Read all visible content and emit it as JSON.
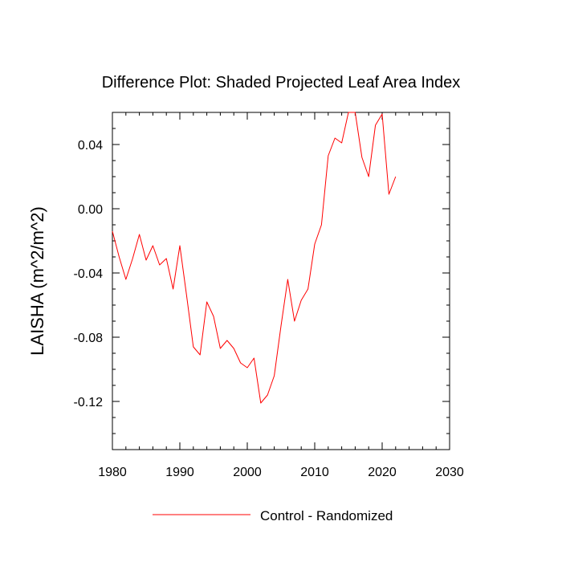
{
  "chart_data": {
    "type": "line",
    "title": "Difference Plot: Shaded Projected Leaf Area Index",
    "xlabel": "",
    "ylabel": "LAISHA  (m^2/m^2)",
    "xlim": [
      1980,
      2030
    ],
    "ylim": [
      -0.15,
      0.06
    ],
    "x_ticks": [
      1980,
      1990,
      2000,
      2010,
      2020,
      2030
    ],
    "x_tick_labels": [
      "1980",
      "1990",
      "2000",
      "2010",
      "2020",
      "2030"
    ],
    "y_ticks": [
      -0.12,
      -0.08,
      -0.04,
      0.0,
      0.04
    ],
    "y_tick_labels": [
      "-0.12",
      "-0.08",
      "-0.04",
      "0.00",
      "0.04"
    ],
    "grid": false,
    "legend_position": "bottom-center",
    "series": [
      {
        "name": "Control - Randomized",
        "color": "#ff0000",
        "x": [
          1980,
          1981,
          1982,
          1983,
          1984,
          1985,
          1986,
          1987,
          1988,
          1989,
          1990,
          1991,
          1992,
          1993,
          1994,
          1995,
          1996,
          1997,
          1998,
          1999,
          2000,
          2001,
          2002,
          2003,
          2004,
          2005,
          2006,
          2007,
          2008,
          2009,
          2010,
          2011,
          2012,
          2013,
          2014,
          2015,
          2016,
          2017,
          2018,
          2019,
          2020,
          2021,
          2022
        ],
        "values": [
          -0.014,
          -0.03,
          -0.044,
          -0.031,
          -0.016,
          -0.032,
          -0.023,
          -0.035,
          -0.031,
          -0.05,
          -0.023,
          -0.054,
          -0.086,
          -0.091,
          -0.058,
          -0.067,
          -0.087,
          -0.082,
          -0.087,
          -0.096,
          -0.099,
          -0.093,
          -0.121,
          -0.116,
          -0.104,
          -0.073,
          -0.044,
          -0.07,
          -0.057,
          -0.05,
          -0.022,
          -0.01,
          0.033,
          0.044,
          0.041,
          0.06,
          0.06,
          0.032,
          0.02,
          0.052,
          0.059,
          0.009,
          0.02
        ]
      }
    ]
  }
}
